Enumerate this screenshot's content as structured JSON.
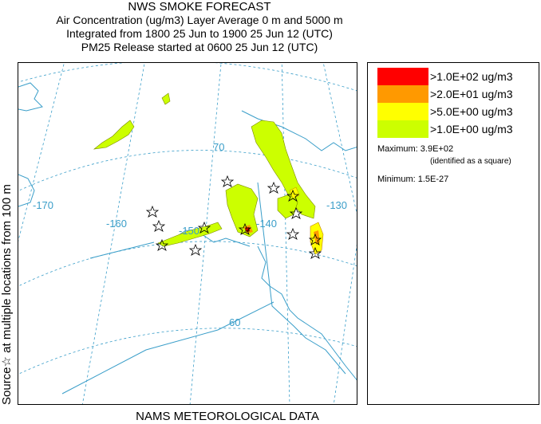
{
  "header": {
    "title": "NWS SMOKE FORECAST",
    "line2": "Air Concentration (ug/m3) Layer Average    0 m and  5000 m",
    "line3": "Integrated from 1800 25 Jun to 1900 25 Jun 12 (UTC)",
    "line4": "PM25 Release started at 0600 25 Jun 12 (UTC)"
  },
  "side_label": "Source☆ at multiple locations   from   100 m",
  "footer": "NAMS METEOROLOGICAL DATA",
  "map": {
    "graticule_labels": [
      "-170",
      "-160",
      "-150",
      "-140",
      "-130",
      "70",
      "60"
    ]
  },
  "legend": {
    "items": [
      {
        "label": ">1.0E+02 ug/m3",
        "color": "#ff0000"
      },
      {
        "label": ">2.0E+01 ug/m3",
        "color": "#ff9900"
      },
      {
        "label": ">5.0E+00 ug/m3",
        "color": "#ffff00"
      },
      {
        "label": ">1.0E+00 ug/m3",
        "color": "#ccff00"
      }
    ],
    "maximum_label": "Maximum: 3.9E+02",
    "maximum_note": "(identified as a square)",
    "minimum_label": "Minimum: 1.5E-27"
  },
  "colors": {
    "graticule": "#3a9ec9",
    "coast": "#3a9ec9",
    "smoke_low": "#ccff00",
    "smoke_mid": "#ffff00",
    "smoke_high": "#ff9900",
    "smoke_max": "#ff0000"
  }
}
